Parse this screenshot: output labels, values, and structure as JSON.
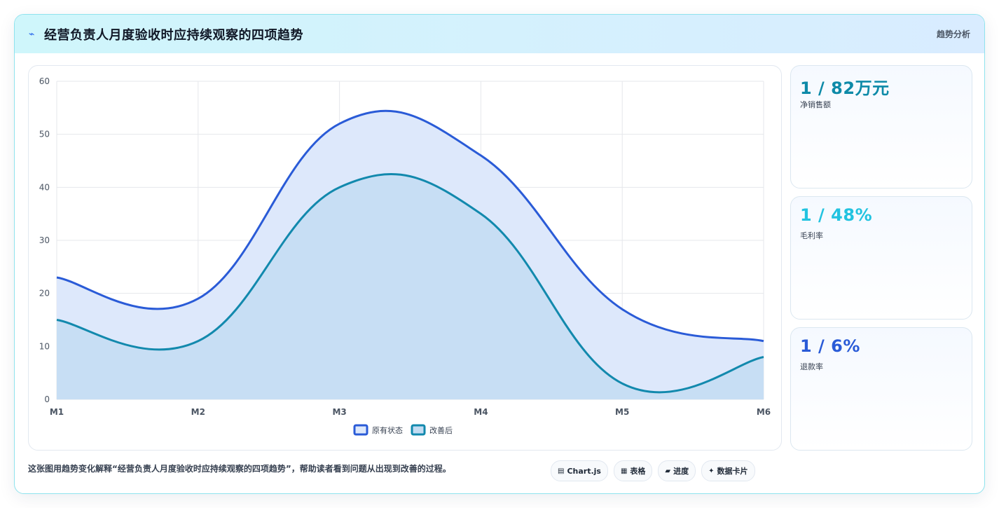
{
  "header": {
    "icon": "trend-arrow-icon",
    "title": "经营负责人月度验收时应持续观察的四项趋势",
    "tag": "趋势分析"
  },
  "kpis": [
    {
      "value": "1 / 82万元",
      "label": "净销售额",
      "color": "#0e8aa8"
    },
    {
      "value": "1 / 48%",
      "label": "毛利率",
      "color": "#22c3e0"
    },
    {
      "value": "1 / 6%",
      "label": "退款率",
      "color": "#2a5bd7"
    }
  ],
  "footer": {
    "text": "这张图用趋势变化解释“经营负责人月度验收时应持续观察的四项趋势”，帮助读者看到问题从出现到改善的过程。",
    "chips": [
      {
        "icon": "chart-icon",
        "glyph": "▤",
        "label": "Chart.js"
      },
      {
        "icon": "table-icon",
        "glyph": "▦",
        "label": "表格"
      },
      {
        "icon": "progress-icon",
        "glyph": "▰",
        "label": "进度"
      },
      {
        "icon": "sparkle-icon",
        "glyph": "✦",
        "label": "数据卡片"
      }
    ]
  },
  "chart_data": {
    "type": "area",
    "categories": [
      "M1",
      "M2",
      "M3",
      "M4",
      "M5",
      "M6"
    ],
    "ylim": [
      0,
      60
    ],
    "yticks": [
      0,
      10,
      20,
      30,
      40,
      50,
      60
    ],
    "grid": true,
    "legend_position": "bottom",
    "series": [
      {
        "name": "原有状态",
        "values": [
          23,
          19,
          52,
          46,
          17,
          11
        ],
        "color": "#2a5bd7",
        "fill": "#dde8fb"
      },
      {
        "name": "改善后",
        "values": [
          15,
          11,
          40,
          35,
          3,
          8
        ],
        "color": "#1289ad",
        "fill": "#c3dcf2"
      }
    ]
  }
}
